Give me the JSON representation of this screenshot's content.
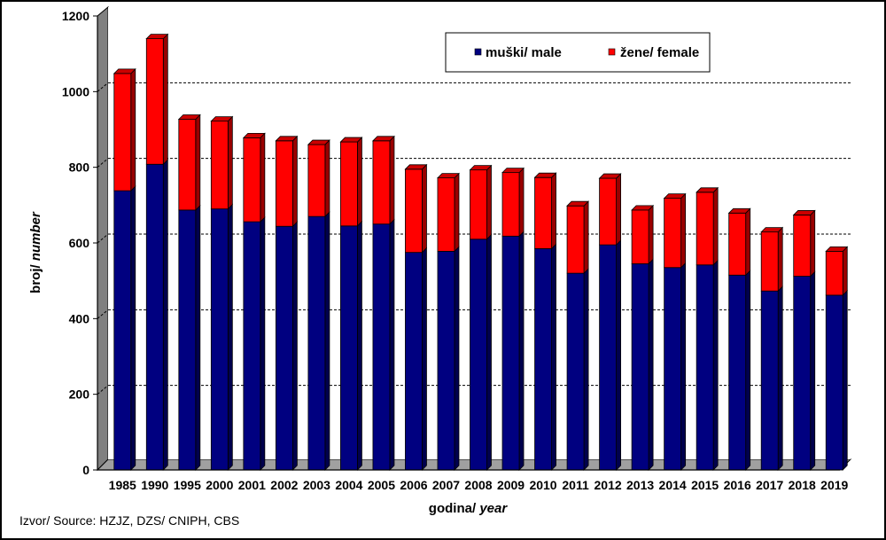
{
  "chart_data": {
    "type": "bar",
    "stacked": true,
    "categories": [
      "1985",
      "1990",
      "1995",
      "2000",
      "2001",
      "2002",
      "2003",
      "2004",
      "2005",
      "2006",
      "2007",
      "2008",
      "2009",
      "2010",
      "2011",
      "2012",
      "2013",
      "2014",
      "2015",
      "2016",
      "2017",
      "2018",
      "2019"
    ],
    "series": [
      {
        "name": "muški/ male",
        "color": "#000080",
        "values": [
          738,
          808,
          687,
          690,
          656,
          644,
          670,
          645,
          650,
          575,
          578,
          610,
          618,
          585,
          520,
          595,
          545,
          535,
          542,
          515,
          473,
          512,
          462
        ]
      },
      {
        "name": "žene/ female",
        "color": "#ff0000",
        "values": [
          310,
          332,
          240,
          232,
          222,
          226,
          190,
          222,
          220,
          220,
          194,
          183,
          168,
          188,
          178,
          176,
          142,
          183,
          192,
          164,
          156,
          162,
          116
        ]
      }
    ],
    "xlabel_bold": "godina",
    "xlabel_italic": "year",
    "ylabel_bold": "broj",
    "ylabel_italic": "number",
    "ylim": [
      0,
      1200
    ],
    "yticks": [
      "0",
      "200",
      "400",
      "600",
      "800",
      "1000",
      "1200"
    ],
    "grid": true,
    "legend_position": "top-right"
  },
  "source": "Izvor/ Source: HZJZ, DZS/ CNIPH, CBS"
}
